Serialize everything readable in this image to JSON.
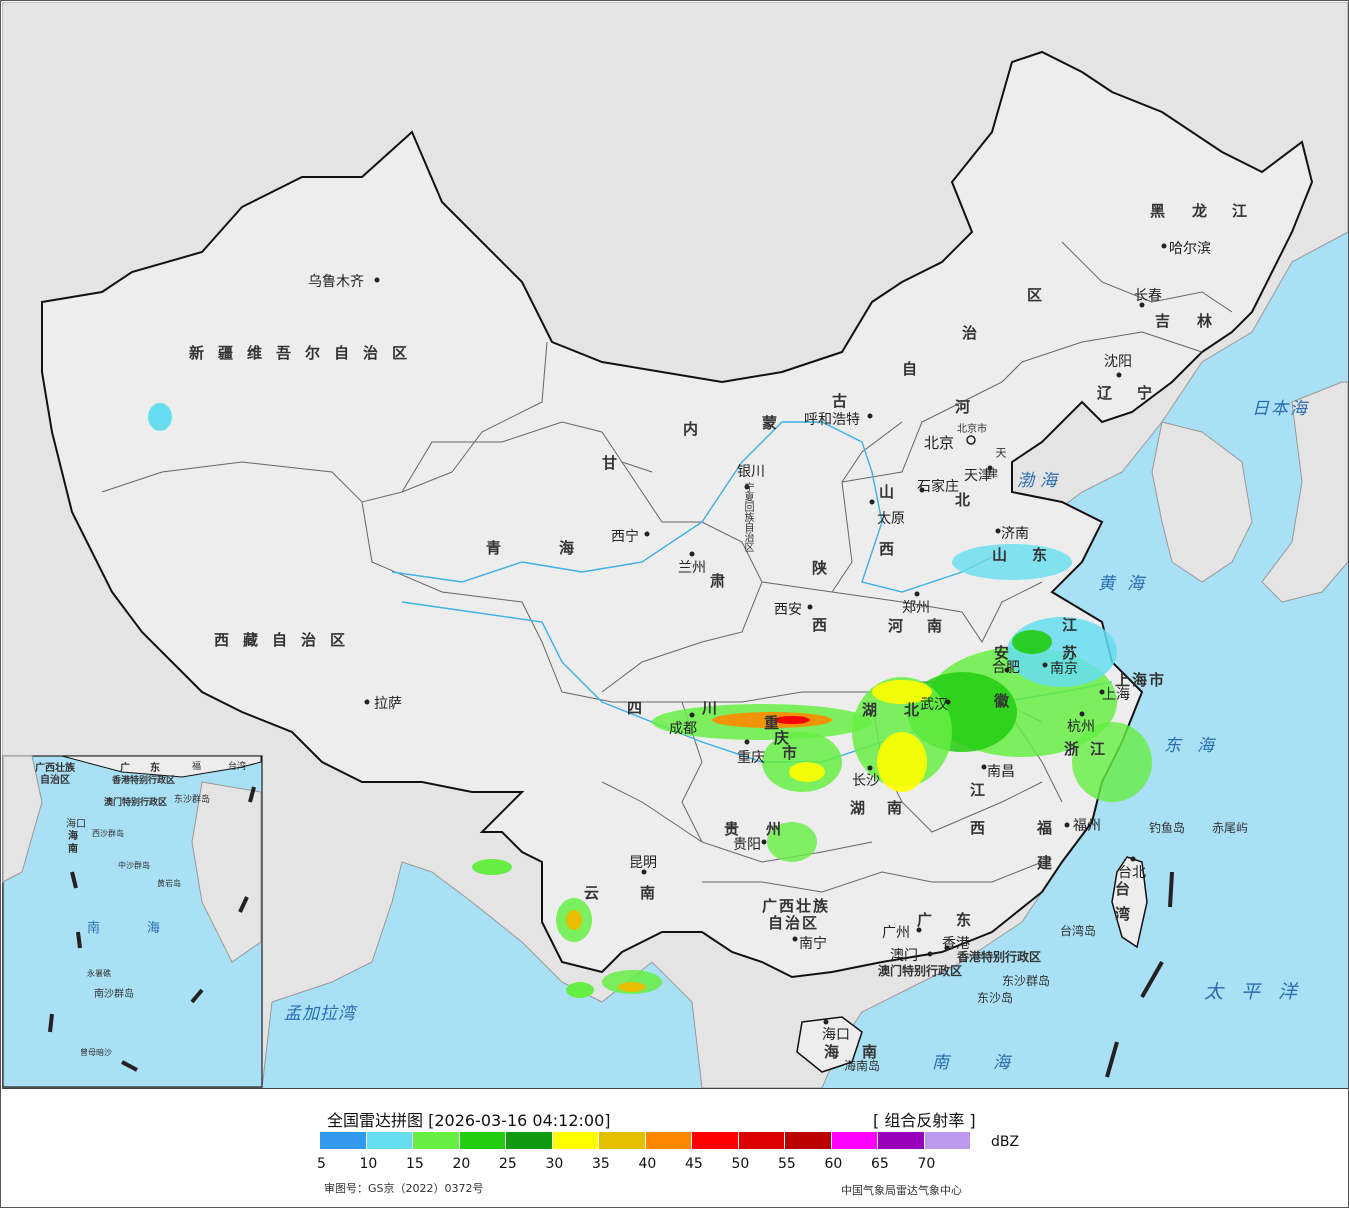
{
  "map": {
    "provinces": [
      {
        "name": "新疆维吾尔自治区"
      },
      {
        "name": "西藏自治区"
      },
      {
        "name": "青"
      },
      {
        "name": "海"
      },
      {
        "name": "甘"
      },
      {
        "name": "肃"
      },
      {
        "name": "内"
      },
      {
        "name": "蒙"
      },
      {
        "name": "古"
      },
      {
        "name": "自"
      },
      {
        "name": "治"
      },
      {
        "name": "区"
      },
      {
        "name": "黑"
      },
      {
        "name": "龙"
      },
      {
        "name": "江"
      },
      {
        "name": "吉"
      },
      {
        "name": "林"
      },
      {
        "name": "辽"
      },
      {
        "name": "宁"
      },
      {
        "name": "河"
      },
      {
        "name": "北"
      },
      {
        "name": "山"
      },
      {
        "name": "西"
      },
      {
        "name": "陕"
      },
      {
        "name": "西"
      },
      {
        "name": "河"
      },
      {
        "name": "南"
      },
      {
        "name": "山"
      },
      {
        "name": "东"
      },
      {
        "name": "江"
      },
      {
        "name": "苏"
      },
      {
        "name": "安"
      },
      {
        "name": "徽"
      },
      {
        "name": "浙"
      },
      {
        "name": "江"
      },
      {
        "name": "上海市"
      },
      {
        "name": "四"
      },
      {
        "name": "川"
      },
      {
        "name": "重"
      },
      {
        "name": "庆"
      },
      {
        "name": "市"
      },
      {
        "name": "湖"
      },
      {
        "name": "北"
      },
      {
        "name": "湖"
      },
      {
        "name": "南"
      },
      {
        "name": "江"
      },
      {
        "name": "西"
      },
      {
        "name": "福"
      },
      {
        "name": "建"
      },
      {
        "name": "贵"
      },
      {
        "name": "州"
      },
      {
        "name": "云"
      },
      {
        "name": "南"
      },
      {
        "name": "广西壮族"
      },
      {
        "name": "自治区"
      },
      {
        "name": "广"
      },
      {
        "name": "东"
      },
      {
        "name": "海"
      },
      {
        "name": "南"
      },
      {
        "name": "台"
      },
      {
        "name": "湾"
      },
      {
        "name": "宁夏回族自治区"
      },
      {
        "name": "天"
      },
      {
        "name": "津"
      },
      {
        "name": "北京市"
      },
      {
        "name": "香港特别行政区"
      },
      {
        "name": "澳门特别行政区"
      }
    ],
    "cities": [
      {
        "name": "乌鲁木齐"
      },
      {
        "name": "拉萨"
      },
      {
        "name": "西宁"
      },
      {
        "name": "兰州"
      },
      {
        "name": "银川"
      },
      {
        "name": "呼和浩特"
      },
      {
        "name": "哈尔滨"
      },
      {
        "name": "长春"
      },
      {
        "name": "沈阳"
      },
      {
        "name": "北京"
      },
      {
        "name": "天津"
      },
      {
        "name": "石家庄"
      },
      {
        "name": "太原"
      },
      {
        "name": "济南"
      },
      {
        "name": "郑州"
      },
      {
        "name": "西安"
      },
      {
        "name": "成都"
      },
      {
        "name": "重庆"
      },
      {
        "name": "武汉"
      },
      {
        "name": "合肥"
      },
      {
        "name": "南京"
      },
      {
        "name": "上海"
      },
      {
        "name": "杭州"
      },
      {
        "name": "南昌"
      },
      {
        "name": "长沙"
      },
      {
        "name": "福州"
      },
      {
        "name": "贵阳"
      },
      {
        "name": "昆明"
      },
      {
        "name": "南宁"
      },
      {
        "name": "广州"
      },
      {
        "name": "澳门"
      },
      {
        "name": "香港"
      },
      {
        "name": "海口"
      },
      {
        "name": "台北"
      }
    ],
    "seas": [
      {
        "name": "日本海"
      },
      {
        "name": "渤海"
      },
      {
        "name": "黄海"
      },
      {
        "name": "东海"
      },
      {
        "name": "太平洋"
      },
      {
        "name": "南海"
      },
      {
        "name": "孟加拉湾"
      }
    ],
    "islands": [
      {
        "name": "钓鱼岛"
      },
      {
        "name": "赤尾屿"
      },
      {
        "name": "台湾岛"
      },
      {
        "name": "东沙群岛"
      },
      {
        "name": "东沙岛"
      },
      {
        "name": "海南岛"
      }
    ],
    "inset": {
      "labels": [
        "广西壮族",
        "自治区",
        "广",
        "东",
        "福",
        "台湾",
        "海口",
        "海",
        "南",
        "香港特别行政区",
        "澳门特别行政区",
        "东沙群岛",
        "西沙群岛",
        "中沙群岛",
        "黄岩岛",
        "南",
        "海",
        "永暑礁",
        "南沙群岛",
        "曾母暗沙"
      ]
    },
    "colors": {
      "ocean": "#a9e0f5",
      "land_china": "#ededed",
      "land_other": "#e4e4e4",
      "border": "#111111",
      "province_border": "#666666",
      "river": "#3fb0e6"
    }
  },
  "legend": {
    "title": "全国雷达拼图 [2026-03-16 04:12:00]",
    "product": "[ 组合反射率 ]",
    "unit": "dBZ",
    "ticks": [
      "5",
      "10",
      "15",
      "20",
      "25",
      "30",
      "35",
      "40",
      "45",
      "50",
      "55",
      "60",
      "65",
      "70"
    ],
    "colors": [
      "#3399ee",
      "#66ddee",
      "#66ee44",
      "#22cc11",
      "#119911",
      "#ffff00",
      "#e6c000",
      "#ff8800",
      "#ff0000",
      "#dd0000",
      "#bb0000",
      "#ff00ff",
      "#9900bb",
      "#bb99ee"
    ],
    "review_no": "审图号：GS京（2022）0372号",
    "agency": "中国气象局雷达气象中心"
  }
}
